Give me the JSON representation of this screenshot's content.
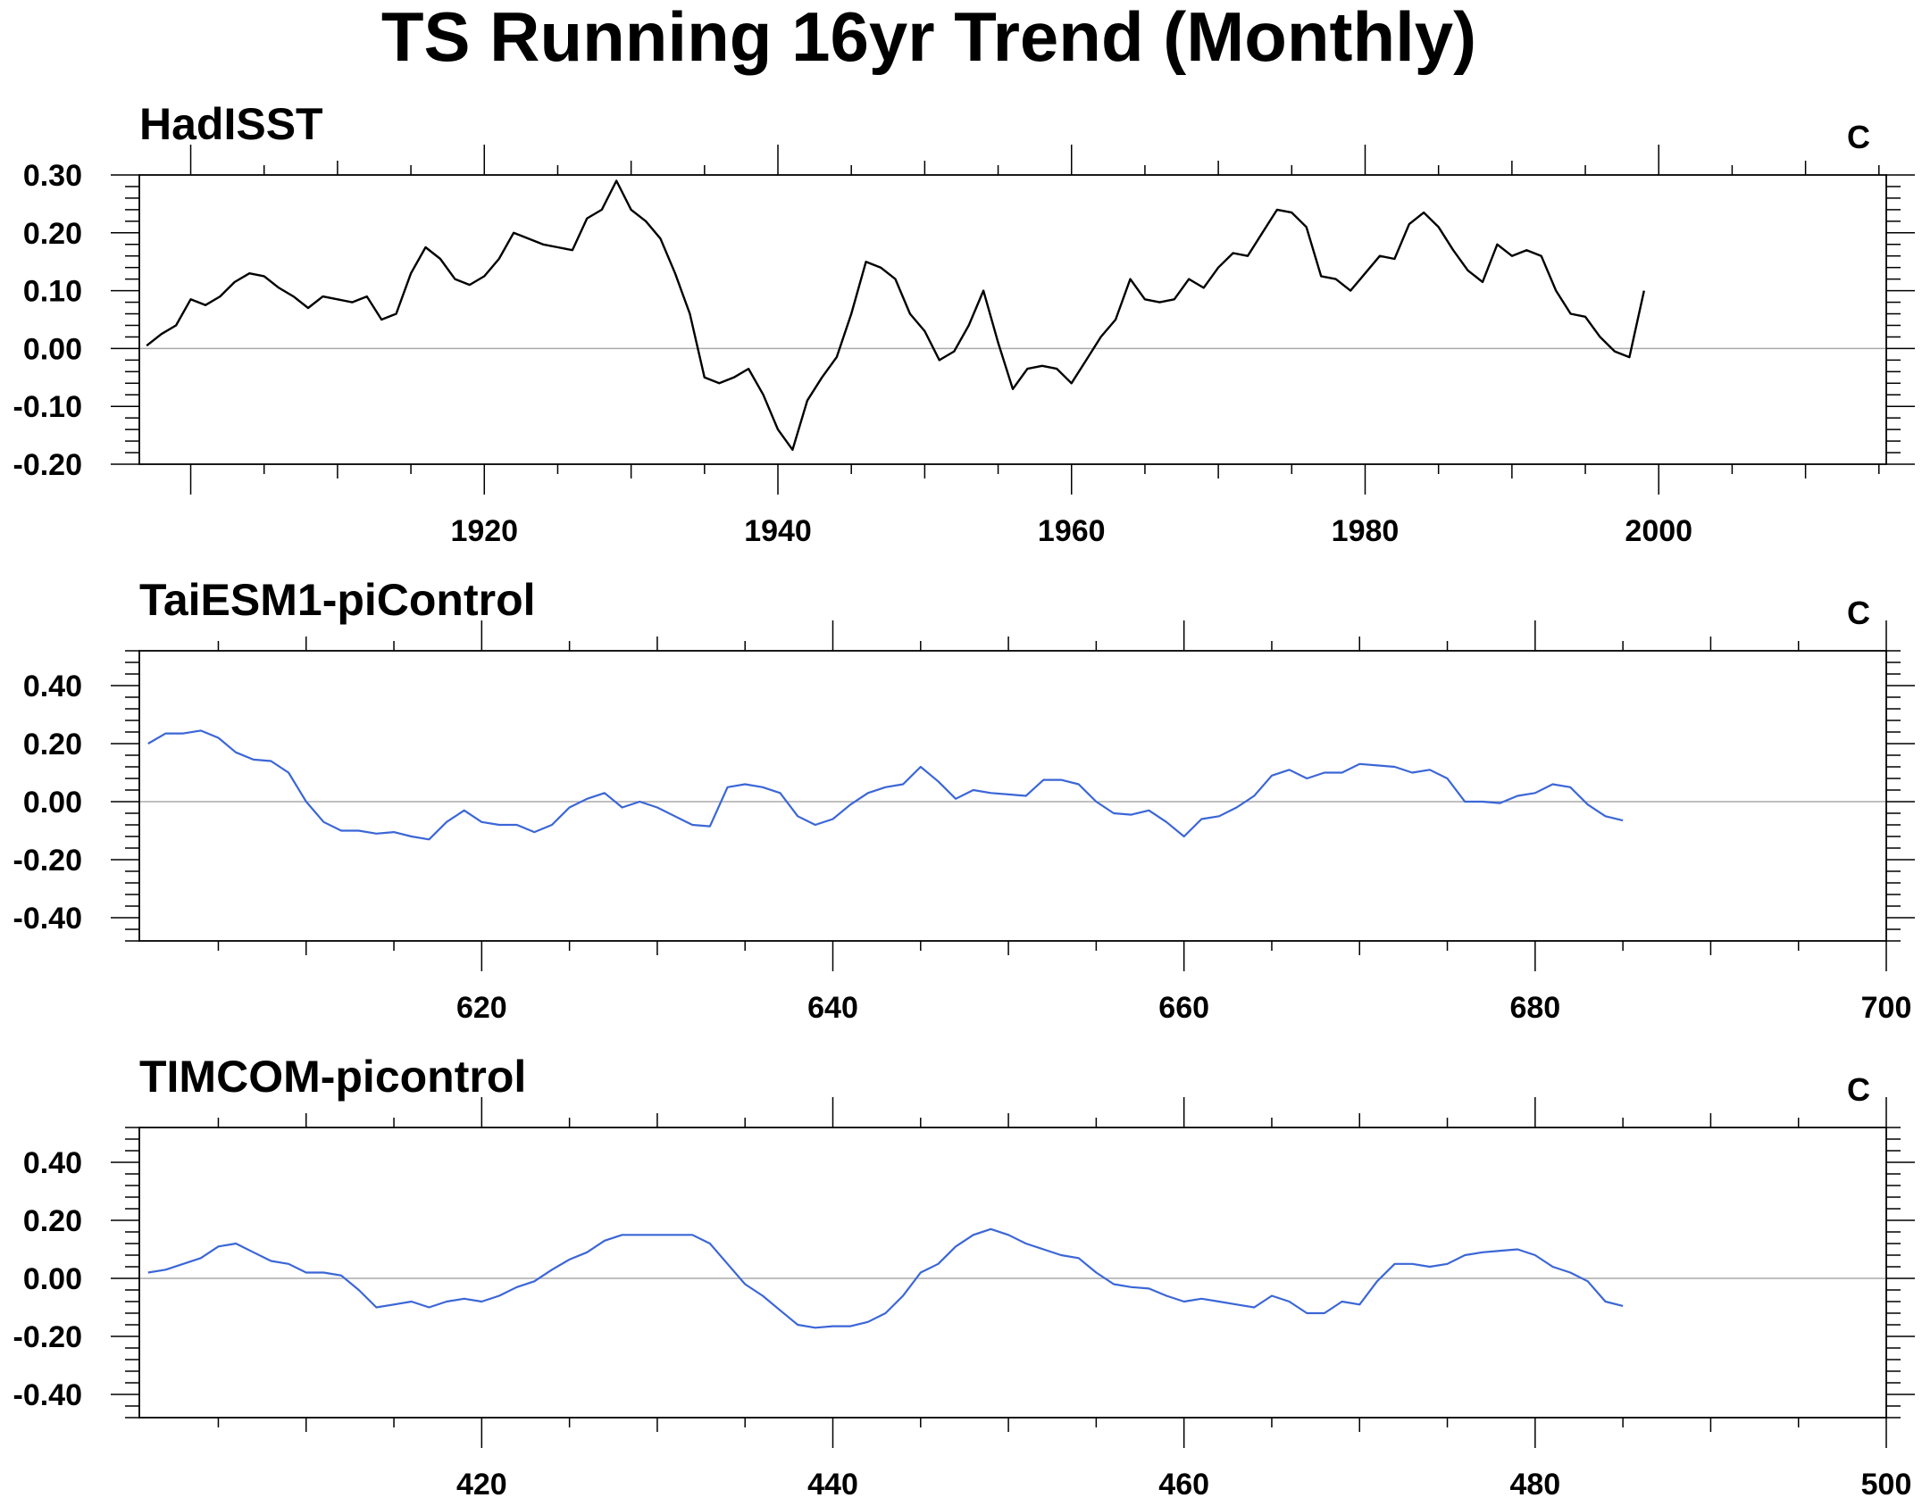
{
  "title": "TS Running 16yr Trend (Monthly)",
  "chart_data": [
    {
      "type": "line",
      "title": "HadISST",
      "unit": "C",
      "xlim": [
        1896.5,
        2015.5
      ],
      "ylim": [
        -0.2,
        0.3
      ],
      "xticks": [
        1920,
        1940,
        1960,
        1980,
        2000
      ],
      "xtick_labels": [
        "1920",
        "1940",
        "1960",
        "1980",
        "2000"
      ],
      "yticks": [
        -0.2,
        -0.1,
        0.0,
        0.1,
        0.2,
        0.3
      ],
      "ytick_labels": [
        "-0.20",
        "-0.10",
        "0.00",
        "0.10",
        "0.20",
        "0.30"
      ],
      "line_color": "#000000",
      "series": [
        {
          "x": [
            1897,
            1898,
            1899,
            1900,
            1901,
            1902,
            1903,
            1904,
            1905,
            1906,
            1907,
            1908,
            1909,
            1910,
            1911,
            1912,
            1913,
            1914,
            1915,
            1916,
            1917,
            1918,
            1919,
            1920,
            1921,
            1922,
            1923,
            1924,
            1925,
            1926,
            1927,
            1928,
            1929,
            1930,
            1931,
            1932,
            1933,
            1934,
            1935,
            1936,
            1937,
            1938,
            1939,
            1940,
            1941,
            1942,
            1943,
            1944,
            1945,
            1946,
            1947,
            1948,
            1949,
            1950,
            1951,
            1952,
            1953,
            1954,
            1955,
            1956,
            1957,
            1958,
            1959,
            1960,
            1961,
            1962,
            1963,
            1964,
            1965,
            1966,
            1967,
            1968,
            1969,
            1970,
            1971,
            1972,
            1973,
            1974,
            1975,
            1976,
            1977,
            1978,
            1979,
            1980,
            1981,
            1982,
            1983,
            1984,
            1985,
            1986,
            1987,
            1988,
            1989,
            1990,
            1991,
            1992,
            1993,
            1994,
            1995,
            1996,
            1997,
            1998,
            1999
          ],
          "values": [
            0.005,
            0.025,
            0.04,
            0.085,
            0.075,
            0.09,
            0.115,
            0.13,
            0.125,
            0.105,
            0.09,
            0.07,
            0.09,
            0.085,
            0.08,
            0.09,
            0.05,
            0.06,
            0.13,
            0.175,
            0.155,
            0.12,
            0.11,
            0.125,
            0.155,
            0.2,
            0.19,
            0.18,
            0.175,
            0.17,
            0.225,
            0.24,
            0.29,
            0.24,
            0.22,
            0.19,
            0.13,
            0.06,
            -0.05,
            -0.06,
            -0.05,
            -0.035,
            -0.08,
            -0.14,
            -0.175,
            -0.09,
            -0.05,
            -0.015,
            0.06,
            0.15,
            0.14,
            0.12,
            0.06,
            0.03,
            -0.02,
            -0.005,
            0.04,
            0.1,
            0.01,
            -0.07,
            -0.035,
            -0.03,
            -0.035,
            -0.06,
            -0.02,
            0.02,
            0.05,
            0.12,
            0.085,
            0.08,
            0.085,
            0.12,
            0.105,
            0.14,
            0.165,
            0.16,
            0.2,
            0.24,
            0.235,
            0.21,
            0.125,
            0.12,
            0.1,
            0.13,
            0.16,
            0.155,
            0.215,
            0.235,
            0.21,
            0.17,
            0.135,
            0.115,
            0.18,
            0.16,
            0.17,
            0.16,
            0.1,
            0.06,
            0.055,
            0.02,
            -0.005,
            -0.015,
            0.1
          ]
        }
      ]
    },
    {
      "type": "line",
      "title": "TaiESM1-piControl",
      "unit": "C",
      "xlim": [
        600.5,
        700
      ],
      "ylim": [
        -0.48,
        0.52
      ],
      "xticks": [
        620,
        640,
        660,
        680,
        700
      ],
      "xtick_labels": [
        "620",
        "640",
        "660",
        "680",
        "700"
      ],
      "yticks": [
        -0.4,
        -0.2,
        0.0,
        0.2,
        0.4
      ],
      "ytick_labels": [
        "-0.40",
        "-0.20",
        "0.00",
        "0.20",
        "0.40"
      ],
      "line_color": "#3b66d6",
      "series": [
        {
          "x": [
            601,
            602,
            603,
            604,
            605,
            606,
            607,
            608,
            609,
            610,
            611,
            612,
            613,
            614,
            615,
            616,
            617,
            618,
            619,
            620,
            621,
            622,
            623,
            624,
            625,
            626,
            627,
            628,
            629,
            630,
            631,
            632,
            633,
            634,
            635,
            636,
            637,
            638,
            639,
            640,
            641,
            642,
            643,
            644,
            645,
            646,
            647,
            648,
            649,
            650,
            651,
            652,
            653,
            654,
            655,
            656,
            657,
            658,
            659,
            660,
            661,
            662,
            663,
            664,
            665,
            666,
            667,
            668,
            669,
            670,
            671,
            672,
            673,
            674,
            675,
            676,
            677,
            678,
            679,
            680,
            681,
            682,
            683,
            684,
            685
          ],
          "values": [
            0.2,
            0.235,
            0.235,
            0.245,
            0.22,
            0.17,
            0.145,
            0.14,
            0.1,
            0.0,
            -0.07,
            -0.1,
            -0.1,
            -0.11,
            -0.105,
            -0.12,
            -0.13,
            -0.07,
            -0.03,
            -0.07,
            -0.08,
            -0.08,
            -0.105,
            -0.08,
            -0.02,
            0.01,
            0.03,
            -0.02,
            0.0,
            -0.02,
            -0.05,
            -0.08,
            -0.085,
            0.05,
            0.06,
            0.05,
            0.03,
            -0.05,
            -0.08,
            -0.06,
            -0.01,
            0.03,
            0.05,
            0.06,
            0.12,
            0.07,
            0.01,
            0.04,
            0.03,
            0.025,
            0.02,
            0.075,
            0.075,
            0.06,
            0.0,
            -0.04,
            -0.045,
            -0.03,
            -0.07,
            -0.12,
            -0.06,
            -0.05,
            -0.02,
            0.02,
            0.09,
            0.11,
            0.08,
            0.1,
            0.1,
            0.13,
            0.125,
            0.12,
            0.1,
            0.11,
            0.08,
            0.0,
            0.0,
            -0.005,
            0.02,
            0.03,
            0.06,
            0.05,
            -0.01,
            -0.05,
            -0.065
          ]
        }
      ]
    },
    {
      "type": "line",
      "title": "TIMCOM-picontrol",
      "unit": "C",
      "xlim": [
        400.5,
        500
      ],
      "ylim": [
        -0.48,
        0.52
      ],
      "xticks": [
        420,
        440,
        460,
        480,
        500
      ],
      "xtick_labels": [
        "420",
        "440",
        "460",
        "480",
        "500"
      ],
      "yticks": [
        -0.4,
        -0.2,
        0.0,
        0.2,
        0.4
      ],
      "ytick_labels": [
        "-0.40",
        "-0.20",
        "0.00",
        "0.20",
        "0.40"
      ],
      "line_color": "#3b66d6",
      "series": [
        {
          "x": [
            401,
            402,
            403,
            404,
            405,
            406,
            407,
            408,
            409,
            410,
            411,
            412,
            413,
            414,
            415,
            416,
            417,
            418,
            419,
            420,
            421,
            422,
            423,
            424,
            425,
            426,
            427,
            428,
            429,
            430,
            431,
            432,
            433,
            434,
            435,
            436,
            437,
            438,
            439,
            440,
            441,
            442,
            443,
            444,
            445,
            446,
            447,
            448,
            449,
            450,
            451,
            452,
            453,
            454,
            455,
            456,
            457,
            458,
            459,
            460,
            461,
            462,
            463,
            464,
            465,
            466,
            467,
            468,
            469,
            470,
            471,
            472,
            473,
            474,
            475,
            476,
            477,
            478,
            479,
            480,
            481,
            482,
            483,
            484,
            485
          ],
          "values": [
            0.02,
            0.03,
            0.05,
            0.07,
            0.11,
            0.12,
            0.09,
            0.06,
            0.05,
            0.02,
            0.02,
            0.01,
            -0.04,
            -0.1,
            -0.09,
            -0.08,
            -0.1,
            -0.08,
            -0.07,
            -0.08,
            -0.06,
            -0.03,
            -0.01,
            0.03,
            0.065,
            0.09,
            0.13,
            0.15,
            0.15,
            0.15,
            0.15,
            0.15,
            0.12,
            0.05,
            -0.02,
            -0.06,
            -0.11,
            -0.16,
            -0.17,
            -0.165,
            -0.165,
            -0.15,
            -0.12,
            -0.06,
            0.02,
            0.05,
            0.11,
            0.15,
            0.17,
            0.15,
            0.12,
            0.1,
            0.08,
            0.07,
            0.02,
            -0.02,
            -0.03,
            -0.035,
            -0.06,
            -0.08,
            -0.07,
            -0.08,
            -0.09,
            -0.1,
            -0.06,
            -0.08,
            -0.12,
            -0.12,
            -0.08,
            -0.09,
            -0.01,
            0.05,
            0.05,
            0.04,
            0.05,
            0.08,
            0.09,
            0.095,
            0.1,
            0.08,
            0.04,
            0.02,
            -0.01,
            -0.08,
            -0.095
          ]
        }
      ]
    }
  ]
}
